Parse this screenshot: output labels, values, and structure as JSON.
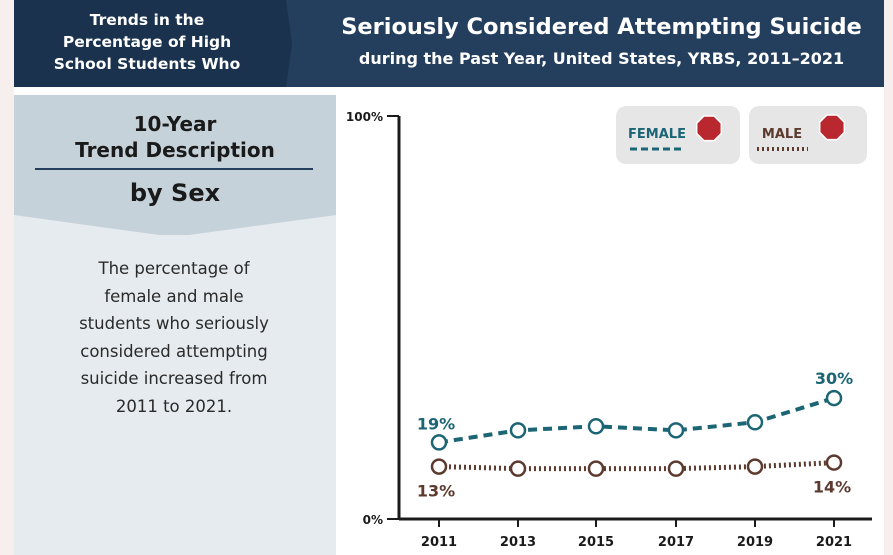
{
  "header": {
    "left_line1": "Trends in the",
    "left_line2": "Percentage of High",
    "left_line3": "School Students Who",
    "title": "Seriously Considered Attempting Suicide",
    "subtitle": "during the Past Year, United States, YRBS, 2011–2021"
  },
  "sidebar": {
    "heading_line1": "10-Year",
    "heading_line2": "Trend Description",
    "subheading": "by Sex",
    "description_lines": [
      "The percentage of",
      "female and male",
      "students who seriously",
      "considered attempting",
      "suicide increased from",
      "2011 to 2021."
    ]
  },
  "colors": {
    "header_bg": "#243e5e",
    "female": "#1b6575",
    "male": "#5c3a2e",
    "stop_sign": "#b8282e"
  },
  "legend": {
    "female_label": "FEMALE",
    "male_label": "MALE",
    "icon": "stop-sign-icon"
  },
  "chart_data": {
    "type": "line",
    "x": [
      "2011",
      "2013",
      "2015",
      "2017",
      "2019",
      "2021"
    ],
    "ylim": [
      0,
      100
    ],
    "y_ticks": [
      "0%",
      "100%"
    ],
    "series": [
      {
        "name": "FEMALE",
        "values": [
          19,
          22,
          23,
          22,
          24,
          30
        ],
        "line_style": "dashed",
        "labels": {
          "first": "19%",
          "last": "30%"
        }
      },
      {
        "name": "MALE",
        "values": [
          13,
          12.5,
          12.5,
          12.5,
          13,
          14
        ],
        "line_style": "dotted",
        "labels": {
          "first": "13%",
          "last": "14%"
        }
      }
    ],
    "legend_position": "top-right"
  }
}
